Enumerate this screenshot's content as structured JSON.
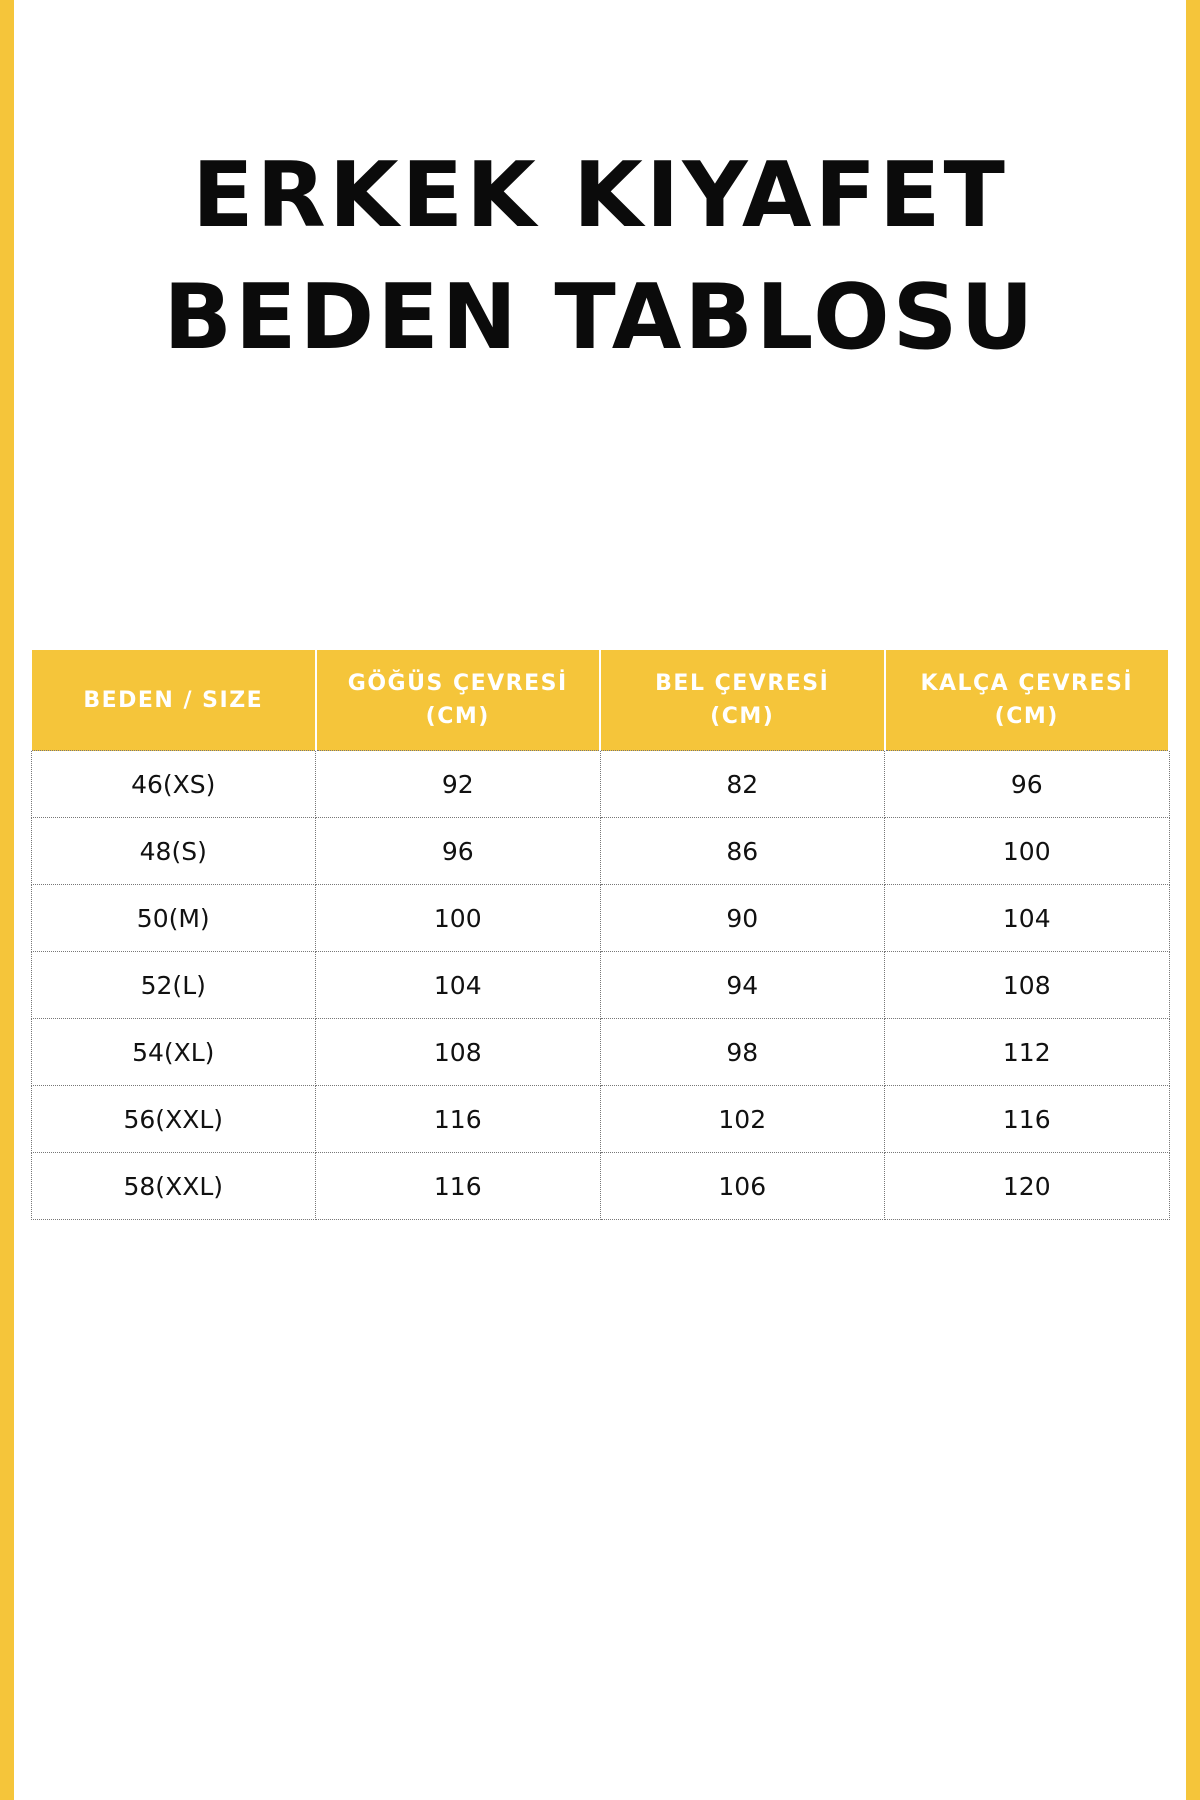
{
  "colors": {
    "accent": "#F5C53A"
  },
  "title": {
    "line1": "ERKEK KIYAFET",
    "line2": "BEDEN TABLOSU"
  },
  "table": {
    "headers": [
      {
        "line1": "BEDEN / SIZE",
        "line2": ""
      },
      {
        "line1": "GÖĞÜS ÇEVRESİ",
        "line2": "(CM)"
      },
      {
        "line1": "BEL ÇEVRESİ",
        "line2": "(CM)"
      },
      {
        "line1": "KALÇA ÇEVRESİ",
        "line2": "(CM)"
      }
    ],
    "rows": [
      [
        "46(XS)",
        "92",
        "82",
        "96"
      ],
      [
        "48(S)",
        "96",
        "86",
        "100"
      ],
      [
        "50(M)",
        "100",
        "90",
        "104"
      ],
      [
        "52(L)",
        "104",
        "94",
        "108"
      ],
      [
        "54(XL)",
        "108",
        "98",
        "112"
      ],
      [
        "56(XXL)",
        "116",
        "102",
        "116"
      ],
      [
        "58(XXL)",
        "116",
        "106",
        "120"
      ]
    ]
  }
}
